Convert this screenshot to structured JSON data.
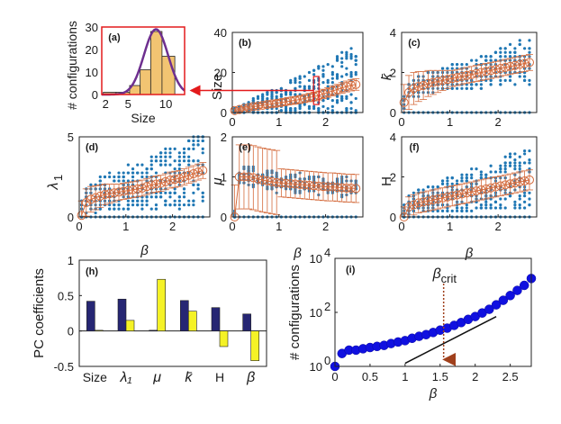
{
  "colors": {
    "scatter": "#1f77b4",
    "mean": "#d46a3b",
    "bar_pc1": "#262673",
    "bar_pc2": "#f5f226",
    "hist_fill": "#f2c472",
    "hist_curve": "#6e2f8f",
    "highlight": "#e31a1c",
    "dots_i": "#1010e0",
    "crit": "#a0401c"
  },
  "chart_data": [
    {
      "id": "a",
      "panel_label": "(a)",
      "type": "bar",
      "title": "",
      "xlabel": "Size",
      "ylabel": "# configurations",
      "xlim": [
        1.5,
        12.5
      ],
      "ylim": [
        0,
        30
      ],
      "xticks": [
        "2",
        "5",
        "10"
      ],
      "yticks": [
        "0",
        "10",
        "20",
        "30"
      ],
      "bins": [
        {
          "x0": 1.7,
          "x1": 3.4,
          "count": 1
        },
        {
          "x0": 3.4,
          "x1": 5.2,
          "count": 1
        },
        {
          "x0": 5.2,
          "x1": 6.6,
          "count": 4
        },
        {
          "x0": 6.6,
          "x1": 8.0,
          "count": 11
        },
        {
          "x0": 8.0,
          "x1": 9.5,
          "count": 28
        },
        {
          "x0": 9.5,
          "x1": 11.2,
          "count": 17
        }
      ],
      "fit_curve": {
        "type": "gaussian",
        "amplitude": 29,
        "mean": 8.7,
        "sd": 1.6
      }
    },
    {
      "id": "b",
      "panel_label": "(b)",
      "type": "scatter",
      "xlabel": "",
      "ylabel": "Size",
      "xlim": [
        0,
        2.8
      ],
      "ylim": [
        0,
        40
      ],
      "xticks": [
        "0",
        "1",
        "2"
      ],
      "yticks": [
        "0",
        "20",
        "40"
      ],
      "highlight_beta": 1.8,
      "mean_values": [
        1,
        1.5,
        2,
        2.5,
        3,
        3.2,
        3.6,
        4,
        4.3,
        4.6,
        5,
        5.4,
        5.8,
        6.1,
        6.5,
        7,
        7.5,
        8,
        8.5,
        9.3,
        10,
        10.8,
        11.5,
        12.3,
        13,
        13.6,
        14
      ]
    },
    {
      "id": "c",
      "panel_label": "(c)",
      "type": "scatter",
      "xlabel": "",
      "ylabel": "k̄",
      "xlim": [
        0,
        2.8
      ],
      "ylim": [
        0,
        4
      ],
      "xticks": [
        "0",
        "1",
        "2"
      ],
      "yticks": [
        "0",
        "2",
        "4"
      ],
      "mean_values": [
        0.5,
        1.0,
        1.2,
        1.3,
        1.35,
        1.45,
        1.5,
        1.55,
        1.6,
        1.65,
        1.7,
        1.75,
        1.8,
        1.85,
        1.9,
        1.95,
        2.0,
        2.05,
        2.1,
        2.15,
        2.2,
        2.25,
        2.3,
        2.35,
        2.4,
        2.45,
        2.5
      ]
    },
    {
      "id": "d",
      "panel_label": "(d)",
      "type": "scatter",
      "xlabel": "",
      "ylabel": "λ",
      "ylabel_sub": "1",
      "xlim": [
        0,
        2.8
      ],
      "ylim": [
        0,
        5
      ],
      "xticks": [
        "0",
        "1",
        "2"
      ],
      "yticks": [
        "0",
        "5"
      ],
      "mean_values": [
        0.1,
        0.9,
        1.1,
        1.2,
        1.3,
        1.4,
        1.45,
        1.5,
        1.55,
        1.6,
        1.65,
        1.7,
        1.75,
        1.8,
        1.9,
        2.0,
        2.05,
        2.1,
        2.2,
        2.3,
        2.35,
        2.4,
        2.5,
        2.6,
        2.7,
        2.8,
        2.9
      ]
    },
    {
      "id": "e",
      "panel_label": "(e)",
      "type": "scatter",
      "xlabel": "β",
      "ylabel": "μ",
      "xlim": [
        0,
        2.8
      ],
      "ylim": [
        0,
        2
      ],
      "xticks": [
        "0",
        "1",
        "2"
      ],
      "yticks": [
        "0",
        "1",
        "2"
      ],
      "mean_values": [
        0,
        1,
        1,
        1,
        0.98,
        0.95,
        0.92,
        0.9,
        0.88,
        0.86,
        0.85,
        0.84,
        0.83,
        0.82,
        0.81,
        0.8,
        0.79,
        0.78,
        0.77,
        0.76,
        0.75,
        0.75,
        0.74,
        0.73,
        0.72,
        0.72,
        0.71
      ]
    },
    {
      "id": "f",
      "panel_label": "(f)",
      "type": "scatter",
      "xlabel": "β",
      "ylabel": "H",
      "xlim": [
        0,
        2.8
      ],
      "ylim": [
        0,
        4
      ],
      "xticks": [
        "0",
        "1",
        "2"
      ],
      "yticks": [
        "0",
        "2",
        "4"
      ],
      "mean_values": [
        0,
        0.5,
        0.6,
        0.7,
        0.75,
        0.8,
        0.85,
        0.9,
        0.95,
        1.0,
        1.05,
        1.1,
        1.15,
        1.2,
        1.25,
        1.3,
        1.35,
        1.4,
        1.45,
        1.5,
        1.55,
        1.6,
        1.65,
        1.7,
        1.75,
        1.8,
        1.85
      ]
    },
    {
      "id": "h",
      "panel_label": "(h)",
      "type": "bar",
      "xlabel": "",
      "ylabel": "PC coefficients",
      "ylim": [
        -0.5,
        1
      ],
      "yticks": [
        "-0.5",
        "0",
        "0.5",
        "1"
      ],
      "categories": [
        "Size",
        "λ₁",
        "μ",
        "k̄",
        "H",
        "β"
      ],
      "series": [
        {
          "name": "PC1",
          "values": [
            0.42,
            0.45,
            0.01,
            0.43,
            0.33,
            0.24
          ]
        },
        {
          "name": "PC2",
          "values": [
            0.01,
            0.15,
            0.73,
            0.28,
            -0.22,
            -0.42
          ]
        }
      ]
    },
    {
      "id": "i",
      "panel_label": "(i)",
      "type": "scatter",
      "xlabel": "β",
      "ylabel": "# configurations",
      "yscale": "log",
      "xlim": [
        0,
        2.8
      ],
      "ylim": [
        1,
        10000
      ],
      "xticks": [
        "0",
        "0.5",
        "1",
        "1.5",
        "2",
        "2.5"
      ],
      "yticks": [
        {
          "base": "10",
          "exp": "0"
        },
        {
          "base": "10",
          "exp": "2"
        },
        {
          "base": "10",
          "exp": "4"
        }
      ],
      "x": [
        0,
        0.1,
        0.2,
        0.3,
        0.4,
        0.5,
        0.6,
        0.7,
        0.8,
        0.9,
        1.0,
        1.1,
        1.2,
        1.3,
        1.4,
        1.5,
        1.6,
        1.7,
        1.8,
        1.9,
        2.0,
        2.1,
        2.2,
        2.3,
        2.4,
        2.5,
        2.6,
        2.7,
        2.8
      ],
      "y": [
        1,
        3,
        4,
        4,
        4.5,
        5,
        5.5,
        6,
        7,
        8,
        9,
        11,
        13,
        15,
        18,
        22,
        26,
        33,
        42,
        55,
        70,
        95,
        130,
        190,
        280,
        420,
        650,
        1000,
        1800
      ],
      "fit_line": {
        "x": [
          1.0,
          2.3
        ],
        "y": [
          1.3,
          70
        ]
      },
      "annotation": {
        "text": "β",
        "sub": "crit",
        "x": 1.55
      }
    }
  ]
}
